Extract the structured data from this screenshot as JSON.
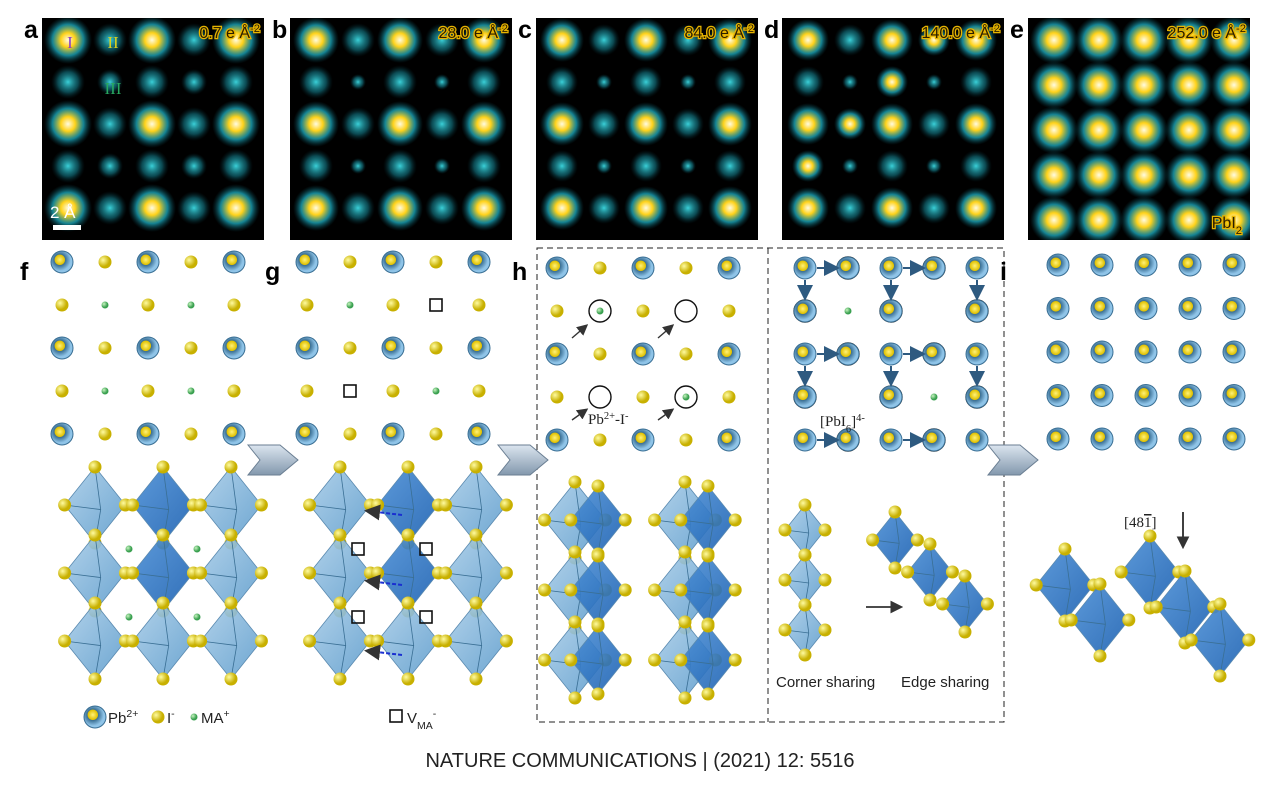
{
  "panels": [
    {
      "letter": "a",
      "dose": "0.7 e Å",
      "dose_exp": "-2"
    },
    {
      "letter": "b",
      "dose": "28.0 e Å",
      "dose_exp": "-2"
    },
    {
      "letter": "c",
      "dose": "84.0 e Å",
      "dose_exp": "-2"
    },
    {
      "letter": "d",
      "dose": "140.0 e Å",
      "dose_exp": "-2"
    },
    {
      "letter": "e",
      "dose": "252.0 e Å",
      "dose_exp": "-2",
      "phase": "PbI",
      "phase_sub": "2"
    }
  ],
  "sites": [
    "I",
    "II",
    "III"
  ],
  "scale_bar": "2 Å",
  "lower_panels": [
    "f",
    "g",
    "h",
    "i"
  ],
  "legend": [
    {
      "label": "Pb",
      "sup": "2+"
    },
    {
      "label": "I",
      "sup": "-"
    },
    {
      "label": "MA",
      "sup": "+"
    }
  ],
  "vacancy": {
    "label": "V",
    "sub": "MA",
    "sup": "-"
  },
  "pair_label": {
    "a": "Pb",
    "a_sup": "2+",
    "b": "-I",
    "b_sup": "-"
  },
  "octahedron_label": {
    "open": "[PbI",
    "sub": "6",
    "close": "]",
    "sup": "4-"
  },
  "direction": {
    "open": "[48",
    "bar": "1",
    "close": "]"
  },
  "corner": "Corner sharing",
  "edge": "Edge sharing",
  "footer": "NATURE COMMUNICATIONS | (2021) 12: 5516"
}
